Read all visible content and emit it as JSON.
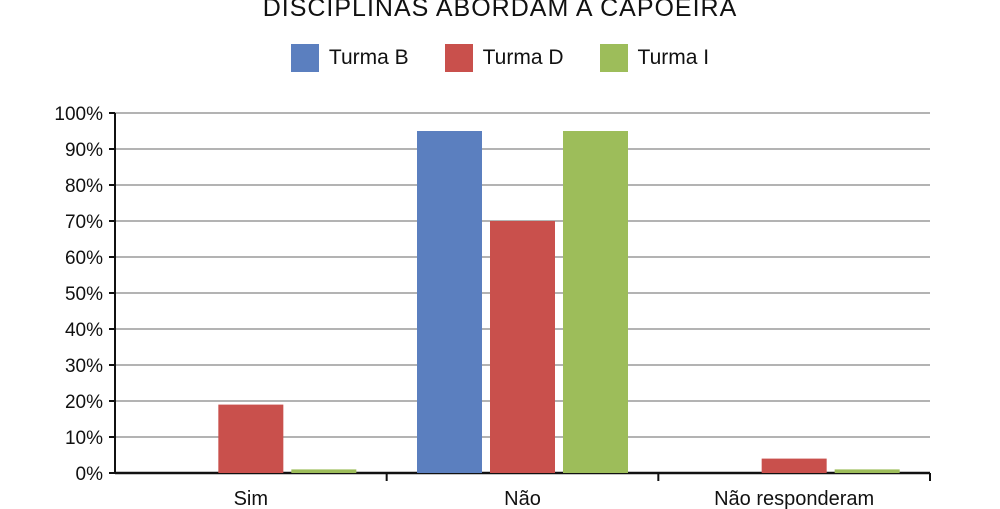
{
  "chart_data": {
    "type": "bar",
    "title": "DISCIPLINAS ABORDAM A CAPOEIRA",
    "categories": [
      "Sim",
      "Não",
      "Não responderam"
    ],
    "series": [
      {
        "name": "Turma B",
        "color": "#5b7fbf",
        "values": [
          0,
          95,
          0
        ]
      },
      {
        "name": "Turma D",
        "color": "#c9504c",
        "values": [
          19,
          70,
          4
        ]
      },
      {
        "name": "Turma I",
        "color": "#9dbd5a",
        "values": [
          1,
          95,
          1
        ]
      }
    ],
    "ylim": [
      0,
      100
    ],
    "yticks": [
      "0%",
      "10%",
      "20%",
      "30%",
      "40%",
      "50%",
      "60%",
      "70%",
      "80%",
      "90%",
      "100%"
    ],
    "grid": true,
    "legend_position": "top"
  }
}
